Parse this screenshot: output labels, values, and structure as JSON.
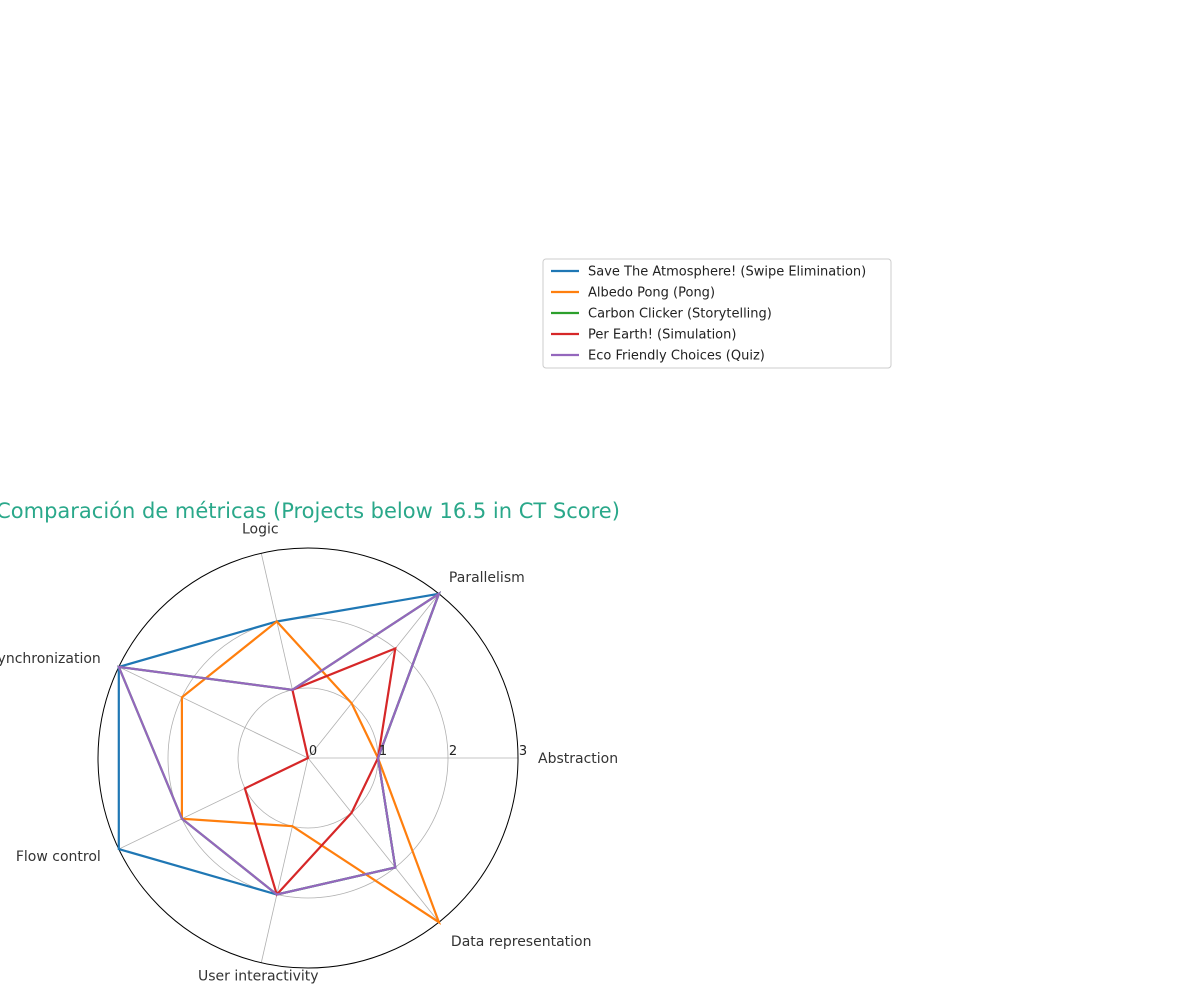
{
  "chart_data": {
    "type": "radar",
    "title": "Comparación de métricas (Projects below 16.5 in CT Score)",
    "title_color": "#2aa88a",
    "axes": [
      "Abstraction",
      "Parallelism",
      "Logic",
      "Synchronization",
      "Flow control",
      "User interactivity",
      "Data representation"
    ],
    "rlim": [
      0,
      3
    ],
    "rticks": [
      "0",
      "1",
      "2",
      "3"
    ],
    "grid": true,
    "legend_position": "top-right",
    "series": [
      {
        "name": "Save The Atmosphere! (Swipe Elimination)",
        "color": "#1f77b4",
        "values": [
          1,
          3,
          2,
          3,
          3,
          2,
          2
        ]
      },
      {
        "name": "Albedo Pong (Pong)",
        "color": "#ff7f0e",
        "values": [
          1,
          1,
          2,
          2,
          2,
          1,
          3
        ]
      },
      {
        "name": "Carbon Clicker (Storytelling)",
        "color": "#2ca02c",
        "values": [
          1,
          3,
          1,
          3,
          2,
          2,
          2
        ]
      },
      {
        "name": "Per Earth! (Simulation)",
        "color": "#d62728",
        "values": [
          1,
          2,
          1,
          0,
          1,
          2,
          1
        ]
      },
      {
        "name": "Eco Friendly Choices (Quiz)",
        "color": "#9467bd",
        "values": [
          1,
          3,
          1,
          3,
          2,
          2,
          2
        ]
      }
    ]
  }
}
